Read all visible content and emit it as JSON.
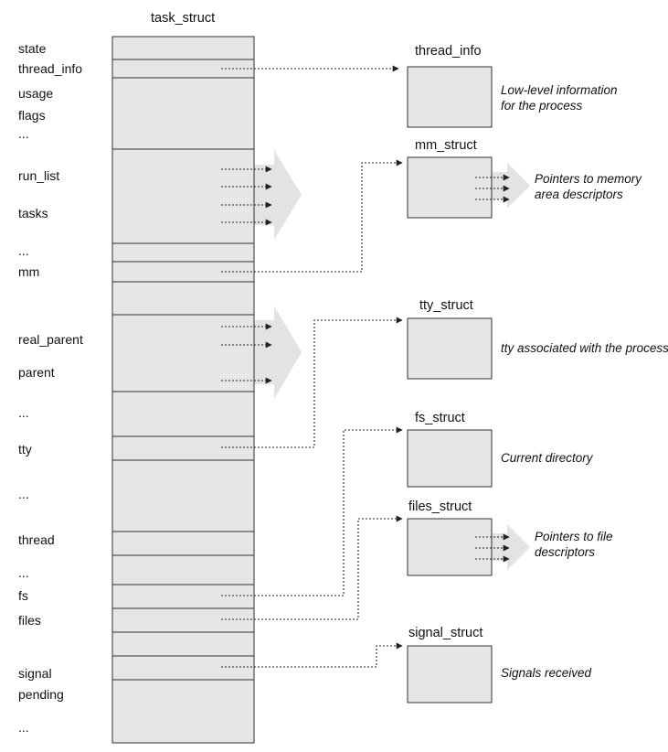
{
  "task_struct": {
    "title": "task_struct",
    "fields": {
      "state": "state",
      "thread_info": "thread_info",
      "usage": "usage",
      "flags": "flags",
      "dots1": "...",
      "run_list": "run_list",
      "tasks": "tasks",
      "dots2": "...",
      "mm": "mm",
      "real_parent": "real_parent",
      "parent": "parent",
      "dots3": "...",
      "tty": "tty",
      "dots4": "...",
      "thread": "thread",
      "dots5": "...",
      "fs": "fs",
      "files": "files",
      "signal": "signal",
      "pending": "pending",
      "dots6": "..."
    }
  },
  "structs": {
    "thread_info": {
      "title": "thread_info",
      "desc_line1": "Low-level information",
      "desc_line2": "for the process"
    },
    "mm_struct": {
      "title": "mm_struct",
      "desc_line1": "Pointers to memory",
      "desc_line2": "area descriptors"
    },
    "tty_struct": {
      "title": "tty_struct",
      "desc_line1": "tty associated with the process"
    },
    "fs_struct": {
      "title": "fs_struct",
      "desc_line1": "Current directory"
    },
    "files_struct": {
      "title": "files_struct",
      "desc_line1": "Pointers to file",
      "desc_line2": "descriptors"
    },
    "signal_struct": {
      "title": "signal_struct",
      "desc_line1": "Signals received"
    }
  },
  "colors": {
    "box_fill": "#e6e6e6",
    "line": "#333333",
    "arrow_fill": "#e3e3e3"
  }
}
